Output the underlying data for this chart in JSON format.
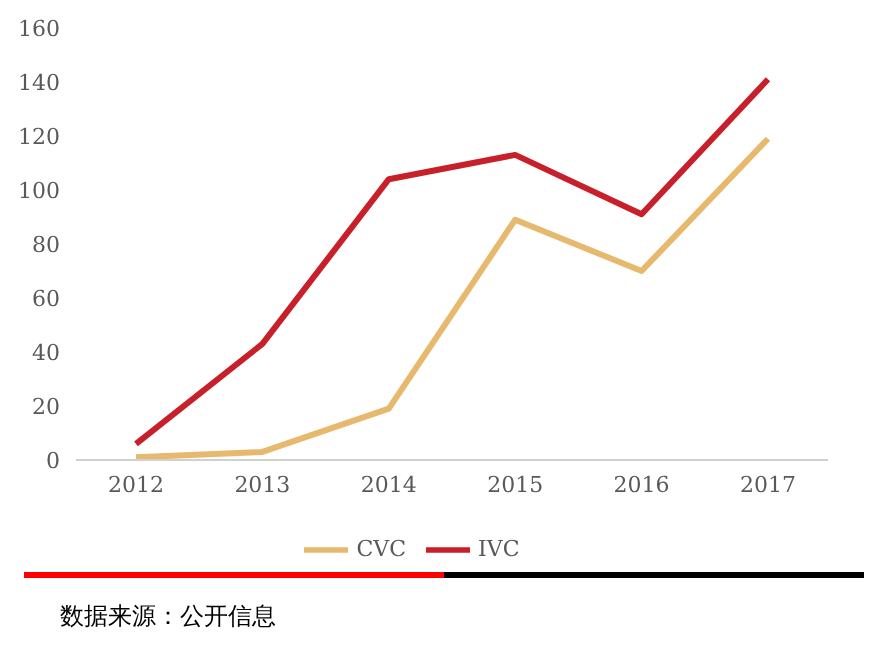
{
  "chart_data": {
    "type": "line",
    "categories": [
      "2012",
      "2013",
      "2014",
      "2015",
      "2016",
      "2017"
    ],
    "series": [
      {
        "name": "CVC",
        "color": "#e6b96e",
        "values": [
          1,
          3,
          19,
          89,
          70,
          119
        ]
      },
      {
        "name": "IVC",
        "color": "#c8202a",
        "values": [
          6,
          43,
          104,
          113,
          91,
          141
        ]
      }
    ],
    "ylim": [
      0,
      160
    ],
    "yticks": [
      0,
      20,
      40,
      60,
      80,
      100,
      120,
      140,
      160
    ],
    "grid": false,
    "legend": "bottom",
    "marker": "none",
    "line_style": "solid",
    "annotations": [
      "数据来源：公开信息"
    ]
  }
}
